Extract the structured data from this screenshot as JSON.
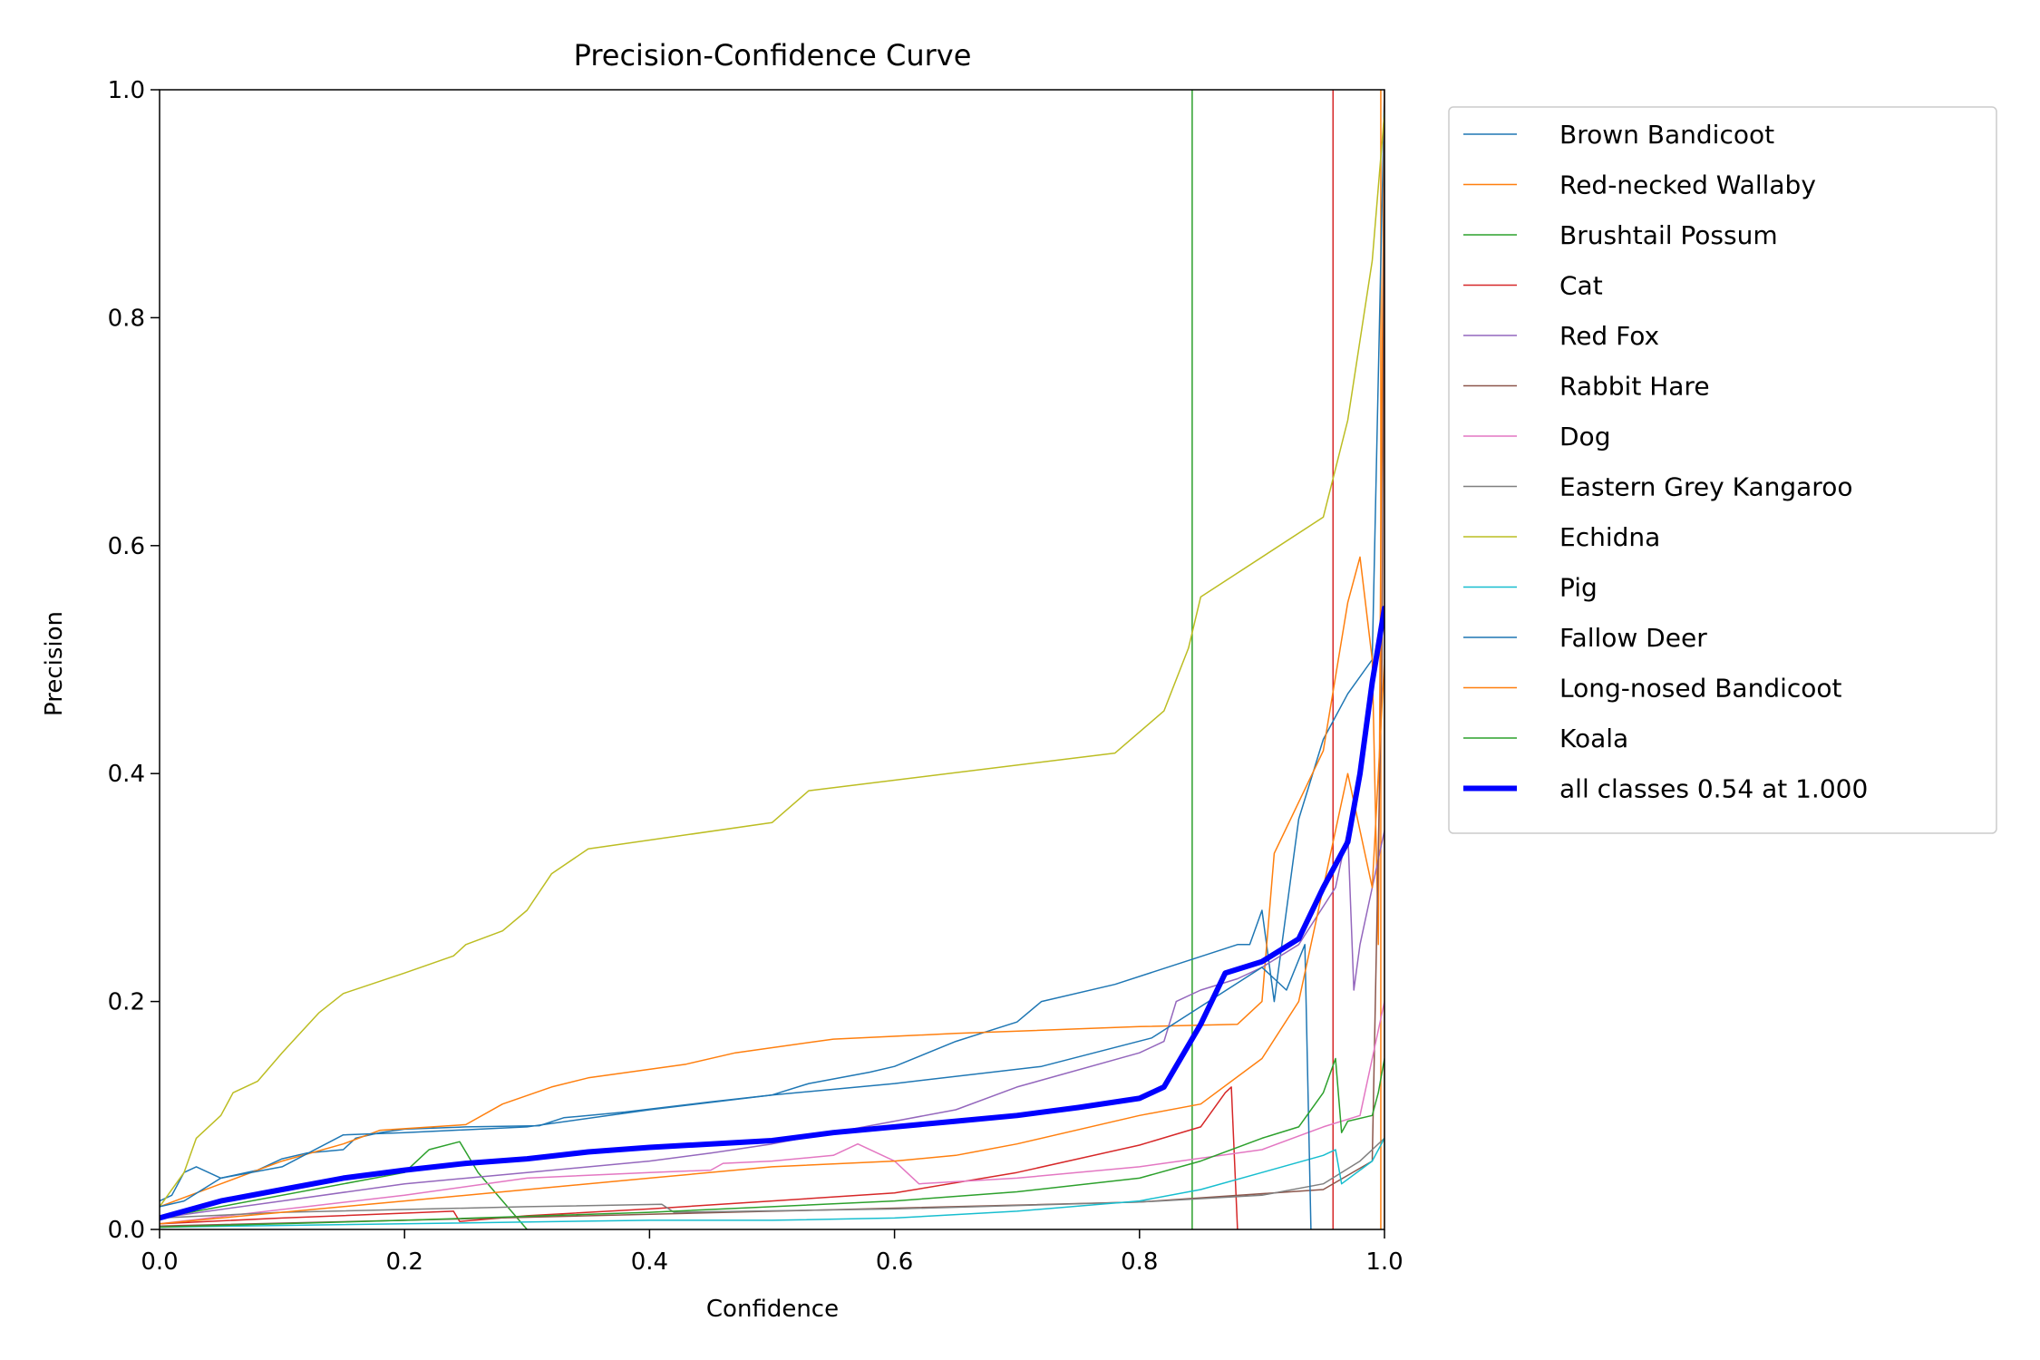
{
  "chart_data": {
    "type": "line",
    "title": "Precision-Confidence Curve",
    "xlabel": "Confidence",
    "ylabel": "Precision",
    "xlim": [
      0,
      1
    ],
    "ylim": [
      0,
      1
    ],
    "xticks": [
      "0.0",
      "0.2",
      "0.4",
      "0.6",
      "0.8",
      "1.0"
    ],
    "yticks": [
      "0.0",
      "0.2",
      "0.4",
      "0.6",
      "0.8",
      "1.0"
    ],
    "grid": false,
    "legend_position": "outside-right",
    "series": [
      {
        "name": "Brown Bandicoot",
        "color": "#1f77b4",
        "width": 1.5,
        "points": [
          [
            0,
            0.025
          ],
          [
            0.01,
            0.03
          ],
          [
            0.02,
            0.05
          ],
          [
            0.03,
            0.055
          ],
          [
            0.05,
            0.045
          ],
          [
            0.08,
            0.052
          ],
          [
            0.1,
            0.062
          ],
          [
            0.12,
            0.067
          ],
          [
            0.15,
            0.07
          ],
          [
            0.16,
            0.08
          ],
          [
            0.18,
            0.085
          ],
          [
            0.2,
            0.088
          ],
          [
            0.25,
            0.09
          ],
          [
            0.31,
            0.091
          ],
          [
            0.33,
            0.098
          ],
          [
            0.38,
            0.103
          ],
          [
            0.45,
            0.112
          ],
          [
            0.5,
            0.118
          ],
          [
            0.53,
            0.128
          ],
          [
            0.58,
            0.138
          ],
          [
            0.6,
            0.143
          ],
          [
            0.65,
            0.165
          ],
          [
            0.7,
            0.182
          ],
          [
            0.72,
            0.2
          ],
          [
            0.78,
            0.215
          ],
          [
            0.88,
            0.25
          ],
          [
            0.89,
            0.25
          ],
          [
            0.9,
            0.28
          ],
          [
            0.91,
            0.2
          ],
          [
            0.93,
            0.36
          ],
          [
            0.95,
            0.43
          ],
          [
            0.97,
            0.47
          ],
          [
            0.99,
            0.5
          ],
          [
            1.0,
            1.0
          ]
        ]
      },
      {
        "name": "Red-necked Wallaby",
        "color": "#ff7f0e",
        "width": 1.5,
        "points": [
          [
            0,
            0.02
          ],
          [
            0.05,
            0.04
          ],
          [
            0.1,
            0.06
          ],
          [
            0.15,
            0.075
          ],
          [
            0.18,
            0.087
          ],
          [
            0.25,
            0.092
          ],
          [
            0.28,
            0.11
          ],
          [
            0.32,
            0.125
          ],
          [
            0.35,
            0.133
          ],
          [
            0.43,
            0.145
          ],
          [
            0.47,
            0.155
          ],
          [
            0.55,
            0.167
          ],
          [
            0.65,
            0.172
          ],
          [
            0.75,
            0.176
          ],
          [
            0.8,
            0.178
          ],
          [
            0.88,
            0.18
          ],
          [
            0.9,
            0.2
          ],
          [
            0.91,
            0.33
          ],
          [
            0.95,
            0.42
          ],
          [
            0.97,
            0.55
          ],
          [
            0.98,
            0.59
          ],
          [
            0.99,
            0.5
          ],
          [
            0.995,
            0.25
          ],
          [
            0.997,
            0.6
          ],
          [
            1.0,
            1.0
          ]
        ]
      },
      {
        "name": "Brushtail Possum",
        "color": "#2ca02c",
        "width": 1.5,
        "points": [
          [
            0,
            0.01
          ],
          [
            0.2,
            0.05
          ],
          [
            0.22,
            0.07
          ],
          [
            0.245,
            0.077
          ],
          [
            0.26,
            0.05
          ],
          [
            0.3,
            0.0
          ]
        ]
      },
      {
        "name": "Cat",
        "color": "#d62728",
        "width": 1.5,
        "points": [
          [
            0,
            0.005
          ],
          [
            0.1,
            0.01
          ],
          [
            0.24,
            0.016
          ],
          [
            0.245,
            0.007
          ],
          [
            0.3,
            0.012
          ],
          [
            0.4,
            0.018
          ],
          [
            0.5,
            0.025
          ],
          [
            0.6,
            0.032
          ],
          [
            0.7,
            0.05
          ],
          [
            0.8,
            0.074
          ],
          [
            0.85,
            0.09
          ],
          [
            0.87,
            0.12
          ],
          [
            0.875,
            0.125
          ],
          [
            0.88,
            0.0
          ]
        ]
      },
      {
        "name": "Red Fox",
        "color": "#9467bd",
        "width": 1.5,
        "points": [
          [
            0,
            0.01
          ],
          [
            0.1,
            0.025
          ],
          [
            0.2,
            0.04
          ],
          [
            0.3,
            0.05
          ],
          [
            0.4,
            0.06
          ],
          [
            0.45,
            0.067
          ],
          [
            0.5,
            0.075
          ],
          [
            0.6,
            0.095
          ],
          [
            0.65,
            0.105
          ],
          [
            0.7,
            0.125
          ],
          [
            0.8,
            0.155
          ],
          [
            0.82,
            0.165
          ],
          [
            0.83,
            0.2
          ],
          [
            0.85,
            0.21
          ],
          [
            0.88,
            0.22
          ],
          [
            0.9,
            0.23
          ],
          [
            0.93,
            0.25
          ],
          [
            0.96,
            0.3
          ],
          [
            0.97,
            0.35
          ],
          [
            0.975,
            0.21
          ],
          [
            0.98,
            0.25
          ],
          [
            0.99,
            0.3
          ],
          [
            1.0,
            0.35
          ]
        ]
      },
      {
        "name": "Rabbit Hare",
        "color": "#8c564b",
        "width": 1.5,
        "points": [
          [
            0,
            0.003
          ],
          [
            0.2,
            0.008
          ],
          [
            0.5,
            0.016
          ],
          [
            0.8,
            0.024
          ],
          [
            0.95,
            0.035
          ],
          [
            0.99,
            0.06
          ],
          [
            0.998,
            0.5
          ],
          [
            1.0,
            1.0
          ]
        ]
      },
      {
        "name": "Dog",
        "color": "#e377c2",
        "width": 1.5,
        "points": [
          [
            0,
            0.005
          ],
          [
            0.2,
            0.03
          ],
          [
            0.3,
            0.045
          ],
          [
            0.4,
            0.05
          ],
          [
            0.45,
            0.052
          ],
          [
            0.46,
            0.058
          ],
          [
            0.5,
            0.06
          ],
          [
            0.55,
            0.065
          ],
          [
            0.57,
            0.075
          ],
          [
            0.6,
            0.06
          ],
          [
            0.62,
            0.04
          ],
          [
            0.7,
            0.045
          ],
          [
            0.8,
            0.055
          ],
          [
            0.9,
            0.07
          ],
          [
            0.95,
            0.09
          ],
          [
            0.98,
            0.1
          ],
          [
            0.99,
            0.15
          ],
          [
            1.0,
            0.2
          ]
        ]
      },
      {
        "name": "Eastern Grey Kangaroo",
        "color": "#7f7f7f",
        "width": 1.5,
        "points": [
          [
            0,
            0.01
          ],
          [
            0.1,
            0.015
          ],
          [
            0.3,
            0.02
          ],
          [
            0.41,
            0.022
          ],
          [
            0.42,
            0.015
          ],
          [
            0.6,
            0.018
          ],
          [
            0.8,
            0.024
          ],
          [
            0.9,
            0.03
          ],
          [
            0.95,
            0.04
          ],
          [
            0.98,
            0.06
          ],
          [
            1.0,
            0.08
          ]
        ]
      },
      {
        "name": "Echidna",
        "color": "#bcbd22",
        "width": 1.5,
        "points": [
          [
            0,
            0.02
          ],
          [
            0.02,
            0.05
          ],
          [
            0.03,
            0.08
          ],
          [
            0.05,
            0.1
          ],
          [
            0.06,
            0.12
          ],
          [
            0.08,
            0.13
          ],
          [
            0.1,
            0.155
          ],
          [
            0.13,
            0.19
          ],
          [
            0.15,
            0.207
          ],
          [
            0.2,
            0.225
          ],
          [
            0.24,
            0.24
          ],
          [
            0.25,
            0.25
          ],
          [
            0.28,
            0.262
          ],
          [
            0.3,
            0.28
          ],
          [
            0.32,
            0.312
          ],
          [
            0.35,
            0.334
          ],
          [
            0.5,
            0.357
          ],
          [
            0.53,
            0.385
          ],
          [
            0.78,
            0.418
          ],
          [
            0.82,
            0.455
          ],
          [
            0.84,
            0.51
          ],
          [
            0.85,
            0.555
          ],
          [
            0.95,
            0.625
          ],
          [
            0.97,
            0.71
          ],
          [
            0.99,
            0.85
          ],
          [
            1.0,
            0.98
          ]
        ]
      },
      {
        "name": "Pig",
        "color": "#17becf",
        "width": 1.5,
        "points": [
          [
            0,
            0.002
          ],
          [
            0.4,
            0.008
          ],
          [
            0.5,
            0.008
          ],
          [
            0.6,
            0.01
          ],
          [
            0.7,
            0.016
          ],
          [
            0.8,
            0.025
          ],
          [
            0.85,
            0.035
          ],
          [
            0.9,
            0.05
          ],
          [
            0.95,
            0.065
          ],
          [
            0.96,
            0.07
          ],
          [
            0.965,
            0.04
          ],
          [
            0.99,
            0.06
          ],
          [
            1.0,
            0.08
          ]
        ]
      },
      {
        "name": "Fallow Deer",
        "color": "#1f77b4",
        "width": 1.5,
        "points": [
          [
            0,
            0.02
          ],
          [
            0.02,
            0.025
          ],
          [
            0.05,
            0.045
          ],
          [
            0.1,
            0.055
          ],
          [
            0.15,
            0.083
          ],
          [
            0.2,
            0.085
          ],
          [
            0.3,
            0.09
          ],
          [
            0.4,
            0.105
          ],
          [
            0.5,
            0.118
          ],
          [
            0.6,
            0.128
          ],
          [
            0.72,
            0.143
          ],
          [
            0.81,
            0.168
          ],
          [
            0.9,
            0.23
          ],
          [
            0.92,
            0.21
          ],
          [
            0.935,
            0.25
          ],
          [
            0.94,
            0.0
          ]
        ]
      },
      {
        "name": "Long-nosed Bandicoot",
        "color": "#ff7f0e",
        "width": 1.5,
        "points": [
          [
            0,
            0.005
          ],
          [
            0.1,
            0.015
          ],
          [
            0.2,
            0.025
          ],
          [
            0.3,
            0.035
          ],
          [
            0.4,
            0.045
          ],
          [
            0.5,
            0.055
          ],
          [
            0.6,
            0.06
          ],
          [
            0.65,
            0.065
          ],
          [
            0.7,
            0.075
          ],
          [
            0.8,
            0.1
          ],
          [
            0.85,
            0.11
          ],
          [
            0.9,
            0.15
          ],
          [
            0.93,
            0.2
          ],
          [
            0.95,
            0.3
          ],
          [
            0.97,
            0.4
          ],
          [
            0.98,
            0.35
          ],
          [
            0.99,
            0.3
          ],
          [
            1.0,
            0.5
          ]
        ]
      },
      {
        "name": "Koala",
        "color": "#2ca02c",
        "width": 1.5,
        "points": [
          [
            0,
            0.002
          ],
          [
            0.2,
            0.008
          ],
          [
            0.4,
            0.015
          ],
          [
            0.6,
            0.025
          ],
          [
            0.7,
            0.033
          ],
          [
            0.8,
            0.045
          ],
          [
            0.85,
            0.06
          ],
          [
            0.9,
            0.08
          ],
          [
            0.93,
            0.09
          ],
          [
            0.95,
            0.12
          ],
          [
            0.96,
            0.15
          ],
          [
            0.965,
            0.085
          ],
          [
            0.97,
            0.095
          ],
          [
            0.99,
            0.1
          ],
          [
            0.995,
            0.12
          ],
          [
            1.0,
            0.15
          ]
        ]
      },
      {
        "name": "all classes 0.54 at 1.000",
        "color": "#0000ff",
        "width": 6,
        "points": [
          [
            0,
            0.01
          ],
          [
            0.05,
            0.025
          ],
          [
            0.1,
            0.035
          ],
          [
            0.15,
            0.045
          ],
          [
            0.2,
            0.052
          ],
          [
            0.25,
            0.058
          ],
          [
            0.3,
            0.062
          ],
          [
            0.35,
            0.068
          ],
          [
            0.4,
            0.072
          ],
          [
            0.5,
            0.078
          ],
          [
            0.55,
            0.085
          ],
          [
            0.6,
            0.09
          ],
          [
            0.65,
            0.095
          ],
          [
            0.7,
            0.1
          ],
          [
            0.75,
            0.107
          ],
          [
            0.8,
            0.115
          ],
          [
            0.82,
            0.125
          ],
          [
            0.85,
            0.18
          ],
          [
            0.87,
            0.225
          ],
          [
            0.9,
            0.235
          ],
          [
            0.93,
            0.255
          ],
          [
            0.95,
            0.3
          ],
          [
            0.97,
            0.34
          ],
          [
            0.98,
            0.4
          ],
          [
            0.99,
            0.48
          ],
          [
            1.0,
            0.545
          ]
        ]
      }
    ],
    "vertical_lines": [
      {
        "x": 0.843,
        "color": "#2ca02c",
        "width": 1.5
      },
      {
        "x": 0.958,
        "color": "#d62728",
        "width": 1.5
      },
      {
        "x": 0.997,
        "color": "#ff7f0e",
        "width": 1.5
      },
      {
        "x": 1.0,
        "color": "#ff7f0e",
        "width": 1.5
      }
    ]
  }
}
